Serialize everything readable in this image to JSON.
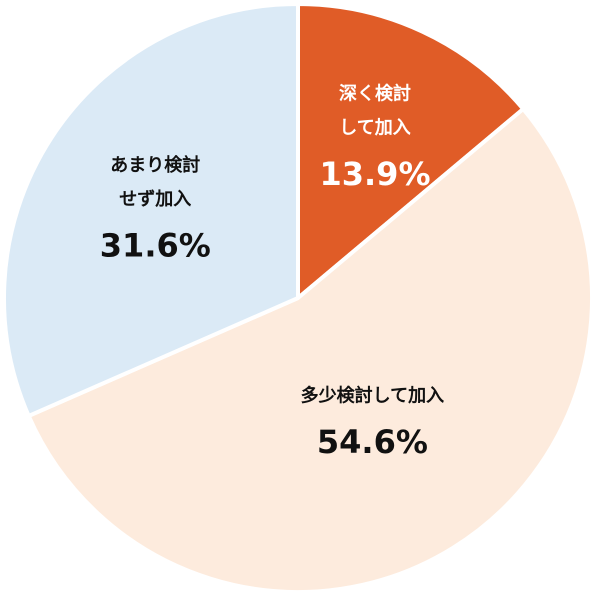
{
  "chart_data": {
    "type": "pie",
    "slices": [
      {
        "label_lines": [
          "深く検討",
          "して加入"
        ],
        "value": 13.9,
        "value_text": "13.9%",
        "color": "#e05c27",
        "text_color": "#ffffff"
      },
      {
        "label_lines": [
          "多少検討して加入"
        ],
        "value": 54.6,
        "value_text": "54.6%",
        "color": "#fdebdd",
        "text_color": "#111111"
      },
      {
        "label_lines": [
          "あまり検討",
          "せず加入"
        ],
        "value": 31.6,
        "value_text": "31.6%",
        "color": "#dbeaf6",
        "text_color": "#111111"
      }
    ],
    "start": "12 o'clock",
    "direction": "clockwise",
    "slice_border_color": "#ffffff",
    "legend": "none"
  }
}
